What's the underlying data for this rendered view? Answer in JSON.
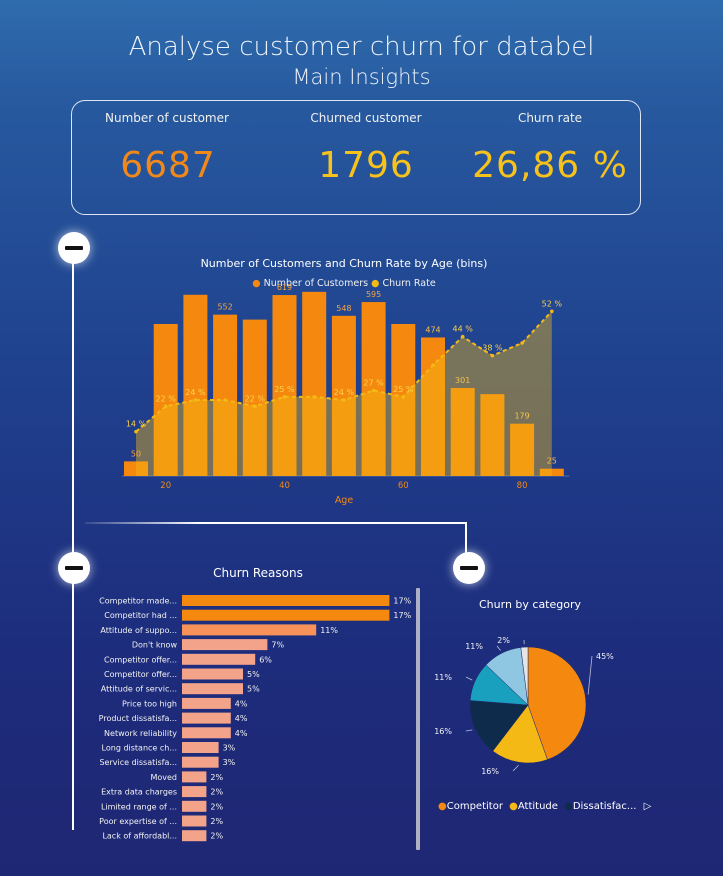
{
  "header": {
    "title": "Analyse customer churn for databel",
    "subtitle": "Main Insights"
  },
  "kpis": [
    {
      "label": "Number of customer",
      "value": "6687",
      "color": "#f0891a"
    },
    {
      "label": "Churned customer",
      "value": "1796",
      "color": "#f6c21b"
    },
    {
      "label": "Churn rate",
      "value": "26,86 %",
      "color": "#f6c21b"
    }
  ],
  "colors": {
    "orange": "#f5890f",
    "yellow": "#f4b915",
    "bar_salmon": "#f3a38a",
    "teal": "#1aa0bf",
    "navy": "#0e2b4c",
    "lightblue": "#8fc7e2"
  },
  "chart_data": [
    {
      "type": "bar",
      "title": "Number of Customers and Churn Rate by Age (bins)",
      "legend": [
        "Number of Customers",
        "Churn Rate"
      ],
      "xlabel": "Age",
      "x_ticks": [
        "20",
        "40",
        "60",
        "80"
      ],
      "ylim": [
        0,
        650
      ],
      "age_bins": [
        15,
        20,
        25,
        30,
        35,
        40,
        45,
        50,
        55,
        60,
        65,
        70,
        75,
        80,
        85
      ],
      "series": [
        {
          "name": "Number of Customers",
          "values": [
            50,
            520,
            620,
            552,
            535,
            619,
            630,
            548,
            595,
            520,
            474,
            301,
            280,
            179,
            25
          ]
        },
        {
          "name": "Churn Rate",
          "values": [
            14,
            22,
            24,
            24,
            22,
            25,
            25,
            24,
            27,
            25,
            35,
            44,
            38,
            42,
            52
          ]
        }
      ],
      "bar_labels": [
        "50",
        "",
        "",
        "552",
        "",
        "619",
        "",
        "548",
        "595",
        "",
        "474",
        "301",
        "",
        "179",
        "25"
      ],
      "rate_labels": [
        "14 %",
        "22 %",
        "24 %",
        "",
        "22 %",
        "25 %",
        "",
        "24 %",
        "27 %",
        "25 %",
        "",
        "44 %",
        "38 %",
        "",
        "52 %"
      ]
    },
    {
      "type": "bar",
      "orientation": "horizontal",
      "title": "Churn Reasons",
      "categories": [
        "Competitor made...",
        "Competitor had ...",
        "Attitude of suppo...",
        "Don't know",
        "Competitor offer...",
        "Competitor offer...",
        "Attitude of servic...",
        "Price too high",
        "Product dissatisfa...",
        "Network reliability",
        "Long distance ch...",
        "Service dissatisfa...",
        "Moved",
        "Extra data charges",
        "Limited range of ...",
        "Poor expertise of ...",
        "Lack of affordabl..."
      ],
      "values": [
        17,
        17,
        11,
        7,
        6,
        5,
        5,
        4,
        4,
        4,
        3,
        3,
        2,
        2,
        2,
        2,
        2
      ],
      "value_labels": [
        "17%",
        "17%",
        "11%",
        "7%",
        "6%",
        "5%",
        "5%",
        "4%",
        "4%",
        "4%",
        "3%",
        "3%",
        "2%",
        "2%",
        "2%",
        "2%",
        "2%"
      ]
    },
    {
      "type": "pie",
      "title": "Churn by category",
      "slices": [
        {
          "name": "Competitor",
          "value": 45,
          "label": "45%"
        },
        {
          "name": "Attitude",
          "value": 16,
          "label": "16%"
        },
        {
          "name": "Dissatisfac...",
          "value": 16,
          "label": "16%"
        },
        {
          "name": "",
          "value": 11,
          "label": "11%"
        },
        {
          "name": "",
          "value": 11,
          "label": "11%"
        },
        {
          "name": "",
          "value": 2,
          "label": "2%"
        }
      ],
      "legend": [
        "Competitor",
        "Attitude",
        "Dissatisfac..."
      ]
    }
  ]
}
